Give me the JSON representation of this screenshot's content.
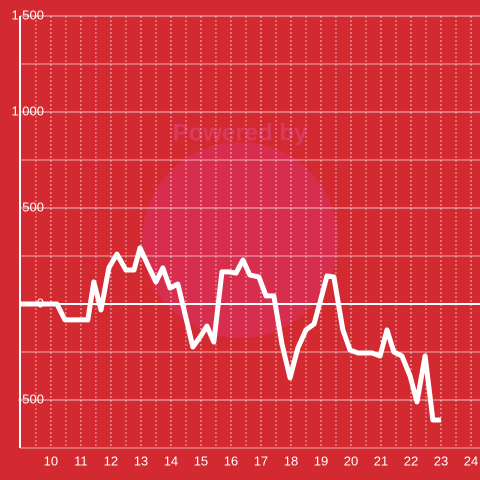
{
  "chart_data": {
    "type": "line",
    "watermark": "Powered by",
    "background": "#d22a30",
    "x": [
      8.97,
      10.2,
      10.47,
      11.23,
      11.43,
      11.67,
      11.93,
      12.2,
      12.5,
      12.77,
      12.97,
      13.23,
      13.5,
      13.73,
      13.97,
      14.23,
      14.47,
      14.73,
      14.97,
      15.2,
      15.43,
      15.7,
      15.93,
      16.17,
      16.4,
      16.63,
      16.93,
      17.17,
      17.43,
      17.7,
      17.97,
      18.23,
      18.5,
      18.77,
      18.97,
      19.2,
      19.43,
      19.73,
      19.97,
      20.23,
      20.7,
      20.97,
      21.2,
      21.43,
      21.7,
      21.97,
      22.2,
      22.47,
      22.73,
      23.0
    ],
    "series": [
      {
        "color": "#ffffff",
        "values": [
          0,
          0,
          -83,
          -83,
          115,
          -31,
          188,
          260,
          177,
          177,
          292,
          203,
          115,
          188,
          83,
          104,
          -52,
          -224,
          -172,
          -115,
          -198,
          167,
          167,
          161,
          229,
          151,
          141,
          42,
          42,
          -208,
          -385,
          -229,
          -135,
          -104,
          10,
          146,
          141,
          -135,
          -240,
          -255,
          -255,
          -271,
          -135,
          -250,
          -271,
          -375,
          -510,
          -271,
          -604,
          -604
        ]
      }
    ],
    "xlim": [
      8.97,
      24.3
    ],
    "ylim": [
      -750,
      1500
    ],
    "xticks": [
      10,
      11,
      12,
      13,
      14,
      15,
      16,
      17,
      18,
      19,
      20,
      21,
      22,
      23,
      24
    ],
    "x_minor_ticks": [
      9.5,
      10.5,
      11.5,
      12.5,
      13.5,
      14.5,
      15.5,
      16.5,
      17.5,
      18.5,
      19.5,
      20.5,
      21.5,
      22.5,
      23.5
    ],
    "yticks": [
      -500,
      0,
      500,
      {
        "value": 1000,
        "label": "1,000"
      },
      {
        "value": 1500,
        "label": "1,500"
      }
    ],
    "y_minor_ticks": [
      -750,
      -250,
      250,
      750,
      1250
    ],
    "grid": true
  }
}
